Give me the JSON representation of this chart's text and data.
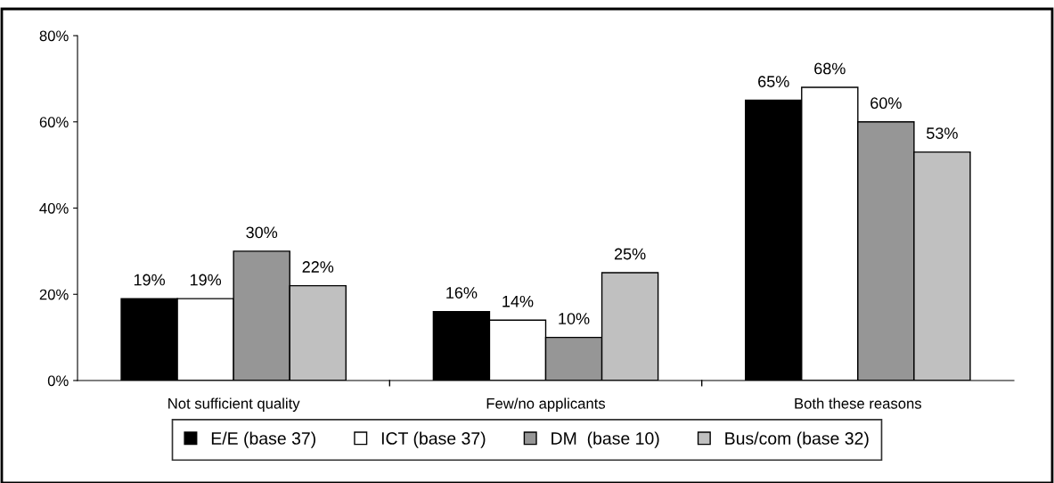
{
  "chart_data": {
    "type": "bar",
    "categories": [
      "Not sufficient quality",
      "Few/no applicants",
      "Both these reasons"
    ],
    "series": [
      {
        "name": "E/E (base 37)",
        "color": "#000000",
        "values": [
          19,
          16,
          65
        ],
        "value_labels": [
          "19%",
          "16%",
          "65%"
        ]
      },
      {
        "name": "ICT (base 37)",
        "color": "#ffffff",
        "values": [
          19,
          14,
          68
        ],
        "value_labels": [
          "19%",
          "14%",
          "68%"
        ]
      },
      {
        "name": "DM  (base 10)",
        "color": "#969696",
        "values": [
          30,
          10,
          60
        ],
        "value_labels": [
          "30%",
          "10%",
          "60%"
        ]
      },
      {
        "name": "Bus/com (base 32)",
        "color": "#c0c0c0",
        "values": [
          22,
          25,
          53
        ],
        "value_labels": [
          "22%",
          "25%",
          "53%"
        ]
      }
    ],
    "ylim": [
      0,
      80
    ],
    "yticks": [
      {
        "value": 0,
        "label": "0%"
      },
      {
        "value": 20,
        "label": "20%"
      },
      {
        "value": 40,
        "label": "40%"
      },
      {
        "value": 60,
        "label": "60%"
      },
      {
        "value": 80,
        "label": "80%"
      }
    ],
    "grid": false,
    "legend": "bottom"
  }
}
